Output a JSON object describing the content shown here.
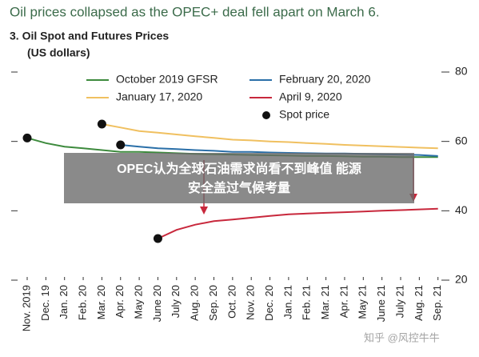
{
  "chart_data": {
    "type": "line",
    "title": "Oil prices collapsed as the OPEC+ deal fell apart on March 6.",
    "subtitle": "3. Oil Spot and Futures Prices",
    "y_label": "(US dollars)",
    "categories": [
      "Nov. 2019",
      "Dec. 19",
      "Jan. 20",
      "Feb. 20",
      "Mar. 20",
      "Apr. 20",
      "May 20",
      "June 20",
      "July 20",
      "Aug. 20",
      "Sep. 20",
      "Oct. 20",
      "Nov. 20",
      "Dec. 20",
      "Jan. 21",
      "Feb. 21",
      "Mar. 21",
      "Apr. 21",
      "May 21",
      "June 21",
      "July 21",
      "Aug. 21",
      "Sep. 21"
    ],
    "series": [
      {
        "name": "October 2019 GFSR",
        "color": "#3d8a3d",
        "values": [
          61,
          59.5,
          58.5,
          58,
          57.5,
          57,
          57,
          56.8,
          56.6,
          56.4,
          56.3,
          56.2,
          56.1,
          56,
          55.9,
          55.8,
          55.8,
          55.7,
          55.6,
          55.6,
          55.5,
          55.5,
          55.5
        ]
      },
      {
        "name": "February 20, 2020",
        "color": "#2a6fa8",
        "values": [
          null,
          null,
          null,
          null,
          null,
          59,
          58.5,
          58,
          57.8,
          57.5,
          57.3,
          57,
          57,
          56.8,
          56.7,
          56.6,
          56.5,
          56.5,
          56.4,
          56.3,
          56.2,
          56.1,
          55.8
        ]
      },
      {
        "name": "January 17, 2020",
        "color": "#f0c060",
        "values": [
          null,
          null,
          null,
          null,
          65,
          64,
          63,
          62.5,
          62,
          61.5,
          61,
          60.5,
          60.3,
          60,
          59.8,
          59.5,
          59.3,
          59,
          58.8,
          58.6,
          58.4,
          58.2,
          58
        ]
      },
      {
        "name": "April 9, 2020",
        "color": "#c8283c",
        "values": [
          null,
          null,
          null,
          null,
          null,
          null,
          null,
          32,
          34.5,
          36,
          37,
          37.5,
          38,
          38.5,
          39,
          39.2,
          39.4,
          39.6,
          39.8,
          40,
          40.2,
          40.4,
          40.6
        ]
      },
      {
        "name": "Spot price",
        "color": "#111111",
        "type": "scatter",
        "values": [
          61,
          null,
          null,
          null,
          65,
          59,
          null,
          32,
          null,
          null,
          null,
          null,
          null,
          null,
          null,
          null,
          null,
          null,
          null,
          null,
          null,
          null,
          null
        ]
      }
    ],
    "ylim": [
      20,
      80
    ],
    "yticks": [
      20,
      40,
      60,
      80
    ],
    "grid": false
  },
  "overlay": {
    "lines": [
      "OPEC认为全球石油需求尚看不到峰值 能源",
      "安全盖过气候考量"
    ],
    "watermark": "知乎 @风控牛牛"
  }
}
